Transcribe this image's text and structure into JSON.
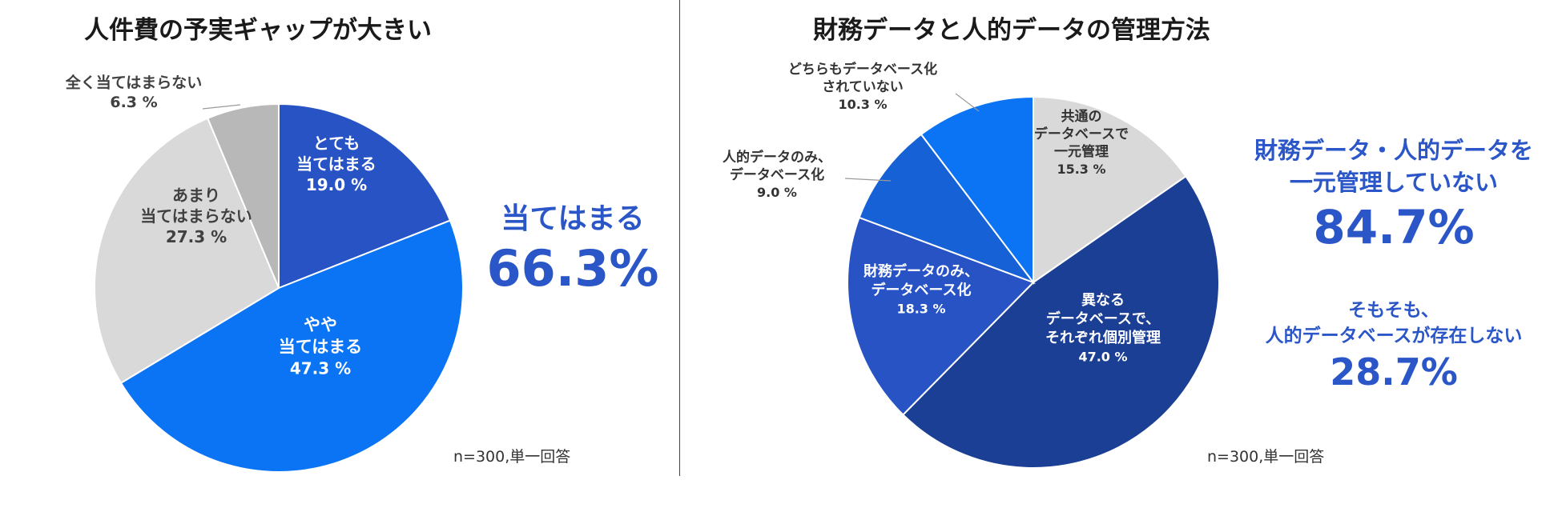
{
  "left": {
    "title": "人件費の予実ギャップが大きい",
    "note": "n=300,単一回答",
    "callout": {
      "line1": "当てはまる",
      "line2": "66.3%"
    }
  },
  "right": {
    "title": "財務データと人的データの管理方法",
    "note": "n=300,単一回答",
    "callout1": {
      "line1": "財務データ・人的データを",
      "line2": "一元管理していない",
      "value": "84.7%"
    },
    "callout2": {
      "line1": "そもそも、",
      "line2": "人的データベースが存在しない",
      "value": "28.7%"
    }
  },
  "colors": {
    "dark_navy": "#1b3f94",
    "royal_blue": "#2753c5",
    "bright_blue": "#0a74f5",
    "light_gray": "#d9d9d9",
    "mid_gray": "#b8b8b8",
    "callout_blue": "#2b56c8"
  },
  "chart_data": [
    {
      "type": "pie",
      "title": "人件費の予実ギャップが大きい",
      "start": "12 o'clock, clockwise",
      "slices": [
        {
          "label_lines": [
            "とても",
            "当てはまる"
          ],
          "value_text": "19.0 %",
          "value": 19.0,
          "color": "#2753c5",
          "label_color": "#ffffff",
          "label_position": "inside"
        },
        {
          "label_lines": [
            "やや",
            "当てはまる"
          ],
          "value_text": "47.3 %",
          "value": 47.3,
          "color": "#0a74f5",
          "label_color": "#ffffff",
          "label_position": "inside"
        },
        {
          "label_lines": [
            "あまり",
            "当てはまらない"
          ],
          "value_text": "27.3 %",
          "value": 27.3,
          "color": "#d9d9d9",
          "label_color": "#404040",
          "label_position": "inside"
        },
        {
          "label_lines": [
            "全く当てはまらない"
          ],
          "value_text": "6.3 %",
          "value": 6.3,
          "color": "#b8b8b8",
          "label_color": "#404040",
          "label_position": "outside"
        }
      ]
    },
    {
      "type": "pie",
      "title": "財務データと人的データの管理方法",
      "start": "12 o'clock, clockwise",
      "slices": [
        {
          "label_lines": [
            "共通の",
            "データベースで",
            "一元管理"
          ],
          "value_text": "15.3 %",
          "value": 15.3,
          "color": "#d9d9d9",
          "label_color": "#333333",
          "label_position": "inside"
        },
        {
          "label_lines": [
            "異なる",
            "データベースで、",
            "それぞれ個別管理"
          ],
          "value_text": "47.0 %",
          "value": 47.0,
          "color": "#1b3f94",
          "label_color": "#ffffff",
          "label_position": "inside"
        },
        {
          "label_lines": [
            "財務データのみ、",
            "データベース化"
          ],
          "value_text": "18.3 %",
          "value": 18.3,
          "color": "#2753c5",
          "label_color": "#ffffff",
          "label_position": "inside"
        },
        {
          "label_lines": [
            "人的データのみ、",
            "データベース化"
          ],
          "value_text": "9.0 %",
          "value": 9.0,
          "color": "#1761d6",
          "label_color": "#333333",
          "label_position": "outside"
        },
        {
          "label_lines": [
            "どちらもデータベース化",
            "されていない"
          ],
          "value_text": "10.3 %",
          "value": 10.3,
          "color": "#0a74f5",
          "label_color": "#333333",
          "label_position": "outside"
        }
      ]
    }
  ]
}
